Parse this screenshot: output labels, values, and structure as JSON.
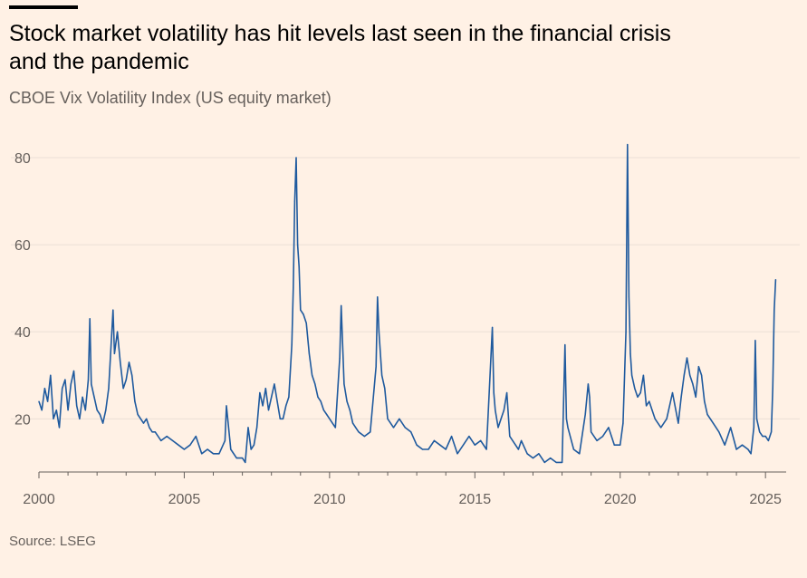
{
  "header": {
    "title": "Stock market volatility has hit levels last seen in the financial crisis and the pandemic",
    "subtitle": "CBOE Vix Volatility Index (US equity market)"
  },
  "footer": {
    "source": "Source: LSEG"
  },
  "colors": {
    "background": "#fff1e5",
    "line": "#1f5a9e",
    "grid": "#ebe0d6",
    "axis": "#66605c",
    "text": "#33302e"
  },
  "chart_data": {
    "type": "line",
    "title": "",
    "xlabel": "",
    "ylabel": "",
    "xlim": [
      2000,
      2025.4
    ],
    "ylim": [
      8,
      85
    ],
    "y_ticks": [
      20,
      40,
      60,
      80
    ],
    "x_ticks": [
      2000,
      2005,
      2010,
      2015,
      2020,
      2025
    ],
    "grid": "horizontal",
    "series": [
      {
        "x": [
          2000.0,
          2000.1,
          2000.2,
          2000.3,
          2000.4,
          2000.5,
          2000.6,
          2000.7,
          2000.8,
          2000.9,
          2001.0,
          2001.1,
          2001.2,
          2001.3,
          2001.4,
          2001.5,
          2001.6,
          2001.7,
          2001.75,
          2001.8,
          2001.9,
          2002.0,
          2002.1,
          2002.2,
          2002.3,
          2002.4,
          2002.5,
          2002.55,
          2002.6,
          2002.7,
          2002.8,
          2002.9,
          2003.0,
          2003.1,
          2003.2,
          2003.3,
          2003.4,
          2003.5,
          2003.6,
          2003.7,
          2003.8,
          2003.9,
          2004.0,
          2004.2,
          2004.4,
          2004.6,
          2004.8,
          2005.0,
          2005.2,
          2005.4,
          2005.6,
          2005.8,
          2006.0,
          2006.2,
          2006.4,
          2006.45,
          2006.6,
          2006.8,
          2007.0,
          2007.1,
          2007.2,
          2007.3,
          2007.4,
          2007.5,
          2007.6,
          2007.7,
          2007.8,
          2007.9,
          2008.0,
          2008.1,
          2008.2,
          2008.3,
          2008.4,
          2008.5,
          2008.6,
          2008.7,
          2008.75,
          2008.8,
          2008.85,
          2008.9,
          2008.95,
          2009.0,
          2009.1,
          2009.2,
          2009.3,
          2009.4,
          2009.5,
          2009.6,
          2009.7,
          2009.8,
          2009.9,
          2010.0,
          2010.2,
          2010.35,
          2010.4,
          2010.5,
          2010.6,
          2010.7,
          2010.8,
          2010.9,
          2011.0,
          2011.2,
          2011.4,
          2011.6,
          2011.65,
          2011.7,
          2011.8,
          2011.9,
          2012.0,
          2012.2,
          2012.4,
          2012.6,
          2012.8,
          2013.0,
          2013.2,
          2013.4,
          2013.6,
          2013.8,
          2014.0,
          2014.2,
          2014.4,
          2014.6,
          2014.8,
          2015.0,
          2015.2,
          2015.4,
          2015.6,
          2015.65,
          2015.7,
          2015.8,
          2015.9,
          2016.0,
          2016.1,
          2016.2,
          2016.4,
          2016.5,
          2016.6,
          2016.8,
          2017.0,
          2017.2,
          2017.4,
          2017.6,
          2017.8,
          2018.0,
          2018.1,
          2018.15,
          2018.2,
          2018.4,
          2018.6,
          2018.8,
          2018.9,
          2018.95,
          2019.0,
          2019.2,
          2019.4,
          2019.6,
          2019.8,
          2020.0,
          2020.1,
          2020.2,
          2020.25,
          2020.3,
          2020.35,
          2020.4,
          2020.5,
          2020.6,
          2020.7,
          2020.8,
          2020.9,
          2021.0,
          2021.1,
          2021.2,
          2021.4,
          2021.6,
          2021.8,
          2022.0,
          2022.1,
          2022.2,
          2022.3,
          2022.4,
          2022.5,
          2022.6,
          2022.7,
          2022.8,
          2022.9,
          2023.0,
          2023.2,
          2023.4,
          2023.6,
          2023.8,
          2024.0,
          2024.2,
          2024.4,
          2024.5,
          2024.6,
          2024.65,
          2024.7,
          2024.8,
          2024.9,
          2025.0,
          2025.1,
          2025.2,
          2025.25,
          2025.3,
          2025.35
        ],
        "values": [
          24,
          22,
          27,
          24,
          30,
          20,
          22,
          18,
          27,
          29,
          22,
          28,
          31,
          23,
          20,
          25,
          22,
          29,
          43,
          28,
          25,
          22,
          21,
          19,
          22,
          27,
          39,
          45,
          35,
          40,
          33,
          27,
          29,
          33,
          30,
          24,
          21,
          20,
          19,
          20,
          18,
          17,
          17,
          15,
          16,
          15,
          14,
          13,
          14,
          16,
          12,
          13,
          12,
          12,
          15,
          23,
          13,
          11,
          11,
          10,
          18,
          13,
          14,
          18,
          26,
          23,
          27,
          22,
          25,
          28,
          24,
          20,
          20,
          23,
          25,
          37,
          50,
          70,
          80,
          60,
          55,
          45,
          44,
          42,
          35,
          30,
          28,
          25,
          24,
          22,
          21,
          20,
          18,
          34,
          46,
          28,
          24,
          22,
          19,
          18,
          17,
          16,
          17,
          32,
          48,
          40,
          30,
          27,
          20,
          18,
          20,
          18,
          17,
          14,
          13,
          13,
          15,
          14,
          13,
          16,
          12,
          14,
          16,
          14,
          15,
          13,
          41,
          26,
          22,
          18,
          20,
          22,
          26,
          16,
          14,
          13,
          15,
          12,
          11,
          12,
          10,
          11,
          10,
          10,
          37,
          20,
          18,
          13,
          12,
          21,
          28,
          25,
          17,
          15,
          16,
          18,
          14,
          14,
          19,
          40,
          83,
          48,
          35,
          30,
          27,
          25,
          26,
          30,
          23,
          24,
          22,
          20,
          18,
          20,
          26,
          19,
          25,
          30,
          34,
          30,
          28,
          25,
          32,
          30,
          24,
          21,
          19,
          17,
          14,
          18,
          13,
          14,
          13,
          12,
          18,
          38,
          20,
          17,
          16,
          16,
          15,
          17,
          27,
          45,
          52
        ]
      }
    ]
  }
}
